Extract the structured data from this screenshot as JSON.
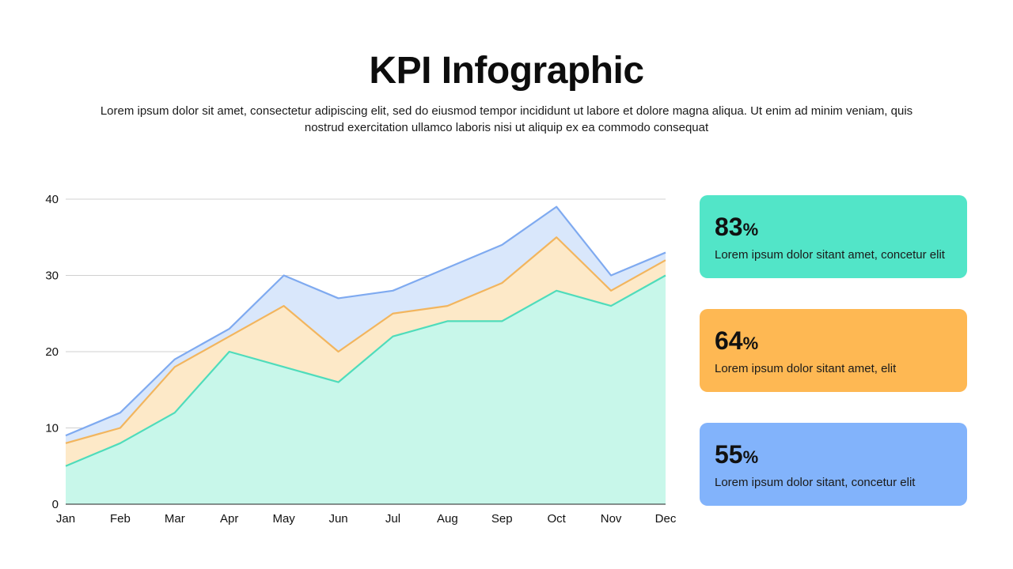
{
  "header": {
    "title": "KPI Infographic",
    "subtitle": "Lorem ipsum dolor sit amet, consectetur adipiscing elit, sed do eiusmod tempor incididunt ut labore et dolore magna aliqua. Ut enim ad minim veniam, quis nostrud exercitation ullamco laboris nisi ut aliquip ex ea commodo consequat"
  },
  "chart_data": {
    "type": "area",
    "title": "",
    "xlabel": "",
    "ylabel": "",
    "categories": [
      "Jan",
      "Feb",
      "Mar",
      "Apr",
      "May",
      "Jun",
      "Jul",
      "Aug",
      "Sep",
      "Oct",
      "Nov",
      "Dec"
    ],
    "ylim": [
      0,
      40
    ],
    "yticks": [
      0,
      10,
      20,
      30,
      40
    ],
    "grid": true,
    "legend": "none",
    "series": [
      {
        "color_fill": "#d9e7fb",
        "color_line": "#7faaf0",
        "values": [
          9,
          12,
          19,
          23,
          30,
          27,
          28,
          31,
          34,
          39,
          30,
          33
        ]
      },
      {
        "color_fill": "#fde9c8",
        "color_line": "#f2b55e",
        "values": [
          8,
          10,
          18,
          22,
          26,
          20,
          25,
          26,
          29,
          35,
          28,
          32
        ]
      },
      {
        "color_fill": "#c8f7ea",
        "color_line": "#4fdcbb",
        "values": [
          5,
          8,
          12,
          20,
          18,
          16,
          22,
          24,
          24,
          28,
          26,
          30
        ]
      }
    ]
  },
  "kpis": [
    {
      "value": "83",
      "unit": "%",
      "label": "Lorem ipsum dolor sitant amet, concetur elit",
      "color": "#52e5c8"
    },
    {
      "value": "64",
      "unit": "%",
      "label": "Lorem ipsum dolor sitant amet, elit",
      "color": "#feb853"
    },
    {
      "value": "55",
      "unit": "%",
      "label": "Lorem ipsum dolor sitant, concetur elit",
      "color": "#82b3fb"
    }
  ]
}
